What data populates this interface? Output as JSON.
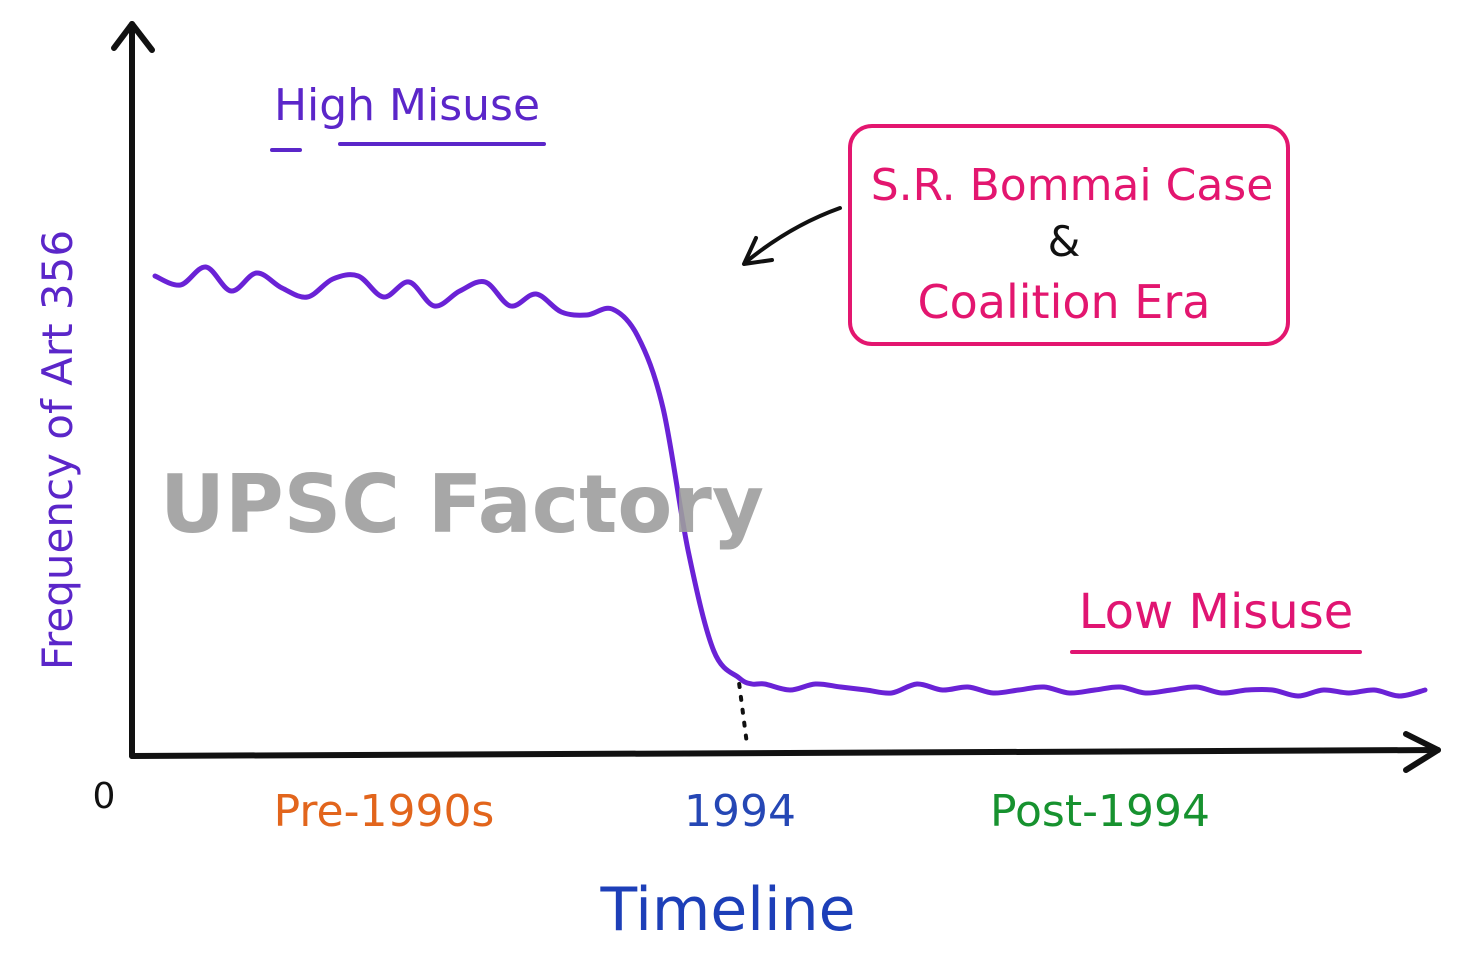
{
  "chart_data": {
    "type": "line",
    "xlabel": "Timeline",
    "ylabel": "Frequency of Art 356",
    "origin_label": "0",
    "x_ticks": [
      "Pre-1990s",
      "1994",
      "Post-1994"
    ],
    "ylim": [
      0,
      100
    ],
    "series": [
      {
        "x": [
          0,
          2,
          4,
          6,
          8,
          10,
          12,
          14,
          16,
          18,
          20,
          22,
          24,
          26,
          28,
          30,
          32,
          34,
          36,
          38,
          40,
          42,
          44,
          46,
          47,
          48,
          50,
          52,
          54,
          56,
          58,
          60,
          62,
          64,
          66,
          68,
          70,
          72,
          74,
          76,
          78,
          80,
          82,
          84,
          86,
          88,
          90,
          92,
          94,
          96,
          98,
          100
        ],
        "values": [
          80,
          78.5,
          81.5,
          77.5,
          80.5,
          78,
          76.5,
          79.5,
          80,
          76.5,
          79,
          75,
          77.5,
          79,
          75,
          77,
          74,
          73.5,
          74.5,
          70,
          58,
          34,
          17.5,
          13,
          12,
          12,
          11,
          12,
          11.5,
          11,
          10.5,
          12,
          11,
          11.5,
          10.5,
          11,
          11.5,
          10.5,
          11,
          11.5,
          10.5,
          11,
          11.5,
          10.5,
          11,
          11,
          10,
          11,
          10.5,
          11,
          10,
          11
        ]
      }
    ],
    "marker": {
      "x": 46,
      "label": "1994",
      "style": "dotted"
    },
    "annotations": {
      "high": "High Misuse",
      "low": "Low Misuse",
      "callout_line1": "S.R. Bommai Case",
      "callout_amp": "&",
      "callout_line2": "Coalition Era"
    },
    "watermark": "UPSC Factory",
    "grid": false,
    "legend": "none",
    "colors": {
      "line": "#6a22d6",
      "axis": "#111111",
      "ylabel": "#5b26c9",
      "xlabel": "#1d3fb8",
      "tick_pre": "#e2651c",
      "tick_1994": "#2547b5",
      "tick_post": "#17922f",
      "high": "#5b26c9",
      "low": "#e01572",
      "callout": "#e3166f",
      "watermark": "#9e9e9e"
    }
  }
}
